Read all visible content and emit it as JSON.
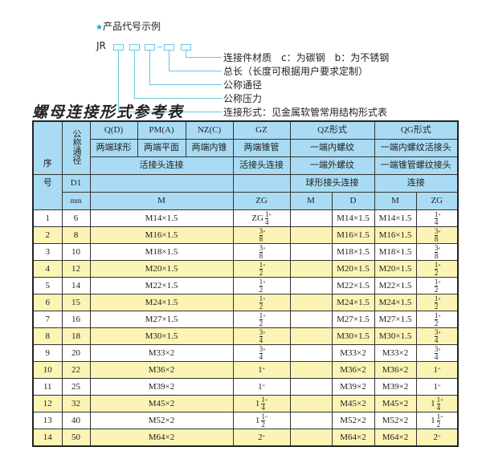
{
  "example": {
    "title": "产品代号示例",
    "star_icon": "star",
    "code_prefix": "JR",
    "labels": [
      "连接件材质　c：为碳钢　b：为不锈钢",
      "总长（长度可根据用户要求定制）",
      "公称通径",
      "公称压力",
      "连接形式：见金属软管常用结构形式表"
    ]
  },
  "table_title": "螺母连接形式参考表",
  "header": {
    "seq_top": "序",
    "seq_bottom": "号",
    "nominal": "公称通径",
    "d1": "D1",
    "mm": "mm",
    "q": "Q(D)",
    "pm": "PM(A)",
    "nz": "NZ(C)",
    "gz": "GZ",
    "qz": "QZ形式",
    "qg": "QG形式",
    "q_desc": "两端球形",
    "pm_desc": "两端平面",
    "nz_desc": "两端内锥",
    "gz_desc": "两端锥管",
    "qz_desc1": "一端内螺纹",
    "qg_desc1": "一端内螺纹活接头",
    "union": "活接头连接",
    "gz_union": "活接头连接",
    "qz_desc2": "一端外螺纹",
    "qg_desc2": "一端锥管螺纹接头",
    "qz_desc3": "球形接头连接",
    "qg_desc3": "连接",
    "col_m": "M",
    "col_zg": "ZG",
    "col_qz_m": "M",
    "col_qz_d": "D",
    "col_qg_m": "M",
    "col_qg_zg": "ZG"
  },
  "colors": {
    "header_bg": "#a9dcf4",
    "alt_row_bg": "#fcf4b4",
    "accent": "#1b9bd7"
  },
  "rows": [
    {
      "no": "1",
      "dn": "6",
      "m": "M14×1.5",
      "zg": {
        "pre": "ZG",
        "n": "1",
        "d": "4"
      },
      "qz_m": "",
      "qz_d": "M14×1.5",
      "qg_m": "M14×1.5",
      "qg_zg": {
        "pre": "",
        "n": "1",
        "d": "4"
      }
    },
    {
      "no": "2",
      "dn": "8",
      "m": "M16×1.5",
      "zg": {
        "pre": "",
        "n": "3",
        "d": "8"
      },
      "qz_m": "",
      "qz_d": "M16×1.5",
      "qg_m": "M16×1.5",
      "qg_zg": {
        "pre": "",
        "n": "3",
        "d": "8"
      }
    },
    {
      "no": "3",
      "dn": "10",
      "m": "M18×1.5",
      "zg": {
        "pre": "",
        "n": "3",
        "d": "8"
      },
      "qz_m": "",
      "qz_d": "M18×1.5",
      "qg_m": "M18×1.5",
      "qg_zg": {
        "pre": "",
        "n": "3",
        "d": "8"
      }
    },
    {
      "no": "4",
      "dn": "12",
      "m": "M20×1.5",
      "zg": {
        "pre": "",
        "n": "1",
        "d": "2"
      },
      "qz_m": "",
      "qz_d": "M20×1.5",
      "qg_m": "M20×1.5",
      "qg_zg": {
        "pre": "",
        "n": "1",
        "d": "2"
      }
    },
    {
      "no": "5",
      "dn": "14",
      "m": "M22×1.5",
      "zg": {
        "pre": "",
        "n": "1",
        "d": "2"
      },
      "qz_m": "",
      "qz_d": "M22×1.5",
      "qg_m": "M22×1.5",
      "qg_zg": {
        "pre": "",
        "n": "1",
        "d": "2"
      }
    },
    {
      "no": "6",
      "dn": "15",
      "m": "M24×1.5",
      "zg": {
        "pre": "",
        "n": "1",
        "d": "2"
      },
      "qz_m": "",
      "qz_d": "M24×1.5",
      "qg_m": "M24×1.5",
      "qg_zg": {
        "pre": "",
        "n": "1",
        "d": "2"
      }
    },
    {
      "no": "7",
      "dn": "16",
      "m": "M27×1.5",
      "zg": {
        "pre": "",
        "n": "1",
        "d": "2"
      },
      "qz_m": "",
      "qz_d": "M27×1.5",
      "qg_m": "M27×1.5",
      "qg_zg": {
        "pre": "",
        "n": "1",
        "d": "2"
      }
    },
    {
      "no": "8",
      "dn": "18",
      "m": "M30×1.5",
      "zg": {
        "pre": "",
        "n": "3",
        "d": "4"
      },
      "qz_m": "",
      "qz_d": "M30×1.5",
      "qg_m": "M30×1.5",
      "qg_zg": {
        "pre": "",
        "n": "3",
        "d": "4"
      }
    },
    {
      "no": "9",
      "dn": "20",
      "m": "M33×2",
      "zg": {
        "pre": "",
        "n": "3",
        "d": "4"
      },
      "qz_m": "",
      "qz_d": "M33×2",
      "qg_m": "M33×2",
      "qg_zg": {
        "pre": "",
        "n": "3",
        "d": "4"
      }
    },
    {
      "no": "10",
      "dn": "22",
      "m": "M36×2",
      "zg": {
        "pre": "1"
      },
      "qz_m": "",
      "qz_d": "M36×2",
      "qg_m": "M36×2",
      "qg_zg": {
        "pre": "1"
      }
    },
    {
      "no": "11",
      "dn": "25",
      "m": "M39×2",
      "zg": {
        "pre": "1"
      },
      "qz_m": "",
      "qz_d": "M39×2",
      "qg_m": "M39×2",
      "qg_zg": {
        "pre": "1"
      }
    },
    {
      "no": "12",
      "dn": "32",
      "m": "M45×2",
      "zg": {
        "pre": "1",
        "n": "1",
        "d": "4"
      },
      "qz_m": "",
      "qz_d": "M45×2",
      "qg_m": "M45×2",
      "qg_zg": {
        "pre": "1",
        "n": "1",
        "d": "4"
      }
    },
    {
      "no": "13",
      "dn": "40",
      "m": "M52×2",
      "zg": {
        "pre": "1",
        "n": "1",
        "d": "2"
      },
      "qz_m": "",
      "qz_d": "M52×2",
      "qg_m": "M52×2",
      "qg_zg": {
        "pre": "1",
        "n": "1",
        "d": "2"
      }
    },
    {
      "no": "14",
      "dn": "50",
      "m": "M64×2",
      "zg": {
        "pre": "2"
      },
      "qz_m": "",
      "qz_d": "M64×2",
      "qg_m": "M64×2",
      "qg_zg": {
        "pre": "2"
      }
    }
  ]
}
